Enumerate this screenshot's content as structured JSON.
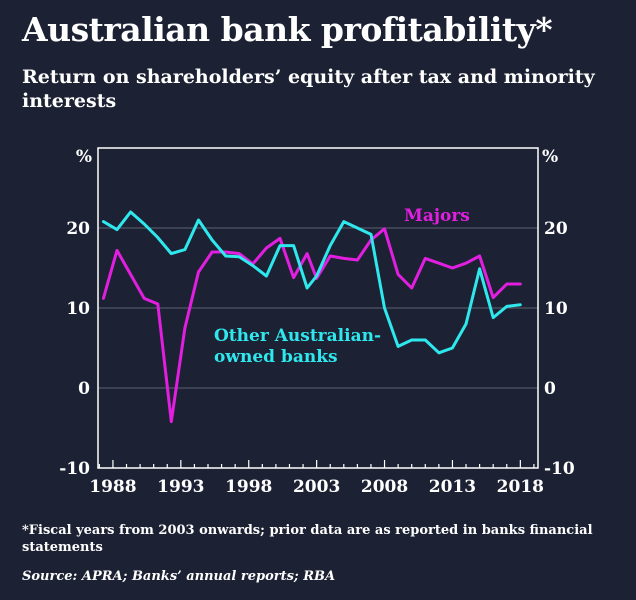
{
  "title": "Australian bank profitability*",
  "subtitle": "Return on shareholders’ equity after tax and minority interests",
  "footnote": "*Fiscal years from 2003 onwards; prior data are as reported in banks financial statements",
  "source": "Source: APRA; Banks’ annual reports; RBA",
  "colors": {
    "background": "#1c2233",
    "majors": "#e21fe0",
    "other": "#2ee8ee",
    "grid": "#5b6170",
    "axis": "#ffffff"
  },
  "chart_data": {
    "type": "line",
    "unit_left": "%",
    "unit_right": "%",
    "xlim": [
      1986.9,
      2019.3
    ],
    "ylim": [
      -10,
      30
    ],
    "y_ticks": [
      -10,
      0,
      10,
      20
    ],
    "x_ticks": [
      1988,
      1993,
      1998,
      2003,
      2008,
      2013,
      2018
    ],
    "x_tick_labels": [
      "1988",
      "1993",
      "1998",
      "2003",
      "2008",
      "2013",
      "2018"
    ],
    "series": [
      {
        "name": "Majors",
        "label": "Majors",
        "points": [
          [
            1987.3,
            11.2
          ],
          [
            1988.3,
            17.2
          ],
          [
            1989.3,
            14.2
          ],
          [
            1990.3,
            11.2
          ],
          [
            1991.3,
            10.5
          ],
          [
            1992.3,
            -4.2
          ],
          [
            1993.3,
            7.5
          ],
          [
            1994.3,
            14.5
          ],
          [
            1995.3,
            17.0
          ],
          [
            1996.3,
            17.0
          ],
          [
            1997.3,
            16.8
          ],
          [
            1998.3,
            15.5
          ],
          [
            1999.3,
            17.5
          ],
          [
            2000.3,
            18.7
          ],
          [
            2001.3,
            13.8
          ],
          [
            2002.3,
            16.8
          ],
          [
            2003.0,
            13.7
          ],
          [
            2004.0,
            16.5
          ],
          [
            2005.0,
            16.2
          ],
          [
            2006.0,
            16.0
          ],
          [
            2007.0,
            18.5
          ],
          [
            2008.0,
            19.9
          ],
          [
            2009.0,
            14.2
          ],
          [
            2010.0,
            12.5
          ],
          [
            2011.0,
            16.2
          ],
          [
            2012.0,
            15.6
          ],
          [
            2013.0,
            15.0
          ],
          [
            2014.0,
            15.6
          ],
          [
            2015.0,
            16.5
          ],
          [
            2016.0,
            11.3
          ],
          [
            2017.0,
            13.0
          ],
          [
            2018.0,
            13.0
          ]
        ]
      },
      {
        "name": "Other Australian-owned banks",
        "label_lines": [
          "Other Australian-",
          "owned banks"
        ],
        "points": [
          [
            1987.3,
            20.8
          ],
          [
            1988.3,
            19.8
          ],
          [
            1989.3,
            22.0
          ],
          [
            1990.3,
            20.5
          ],
          [
            1991.3,
            18.8
          ],
          [
            1992.3,
            16.8
          ],
          [
            1993.3,
            17.3
          ],
          [
            1994.3,
            21.0
          ],
          [
            1995.3,
            18.5
          ],
          [
            1996.3,
            16.5
          ],
          [
            1997.3,
            16.4
          ],
          [
            1998.3,
            15.3
          ],
          [
            1999.3,
            14.0
          ],
          [
            2000.3,
            17.8
          ],
          [
            2001.3,
            17.8
          ],
          [
            2002.3,
            12.5
          ],
          [
            2003.0,
            14.0
          ],
          [
            2004.0,
            17.8
          ],
          [
            2005.0,
            20.8
          ],
          [
            2006.0,
            20.0
          ],
          [
            2007.0,
            19.2
          ],
          [
            2008.0,
            10.0
          ],
          [
            2009.0,
            5.2
          ],
          [
            2010.0,
            6.0
          ],
          [
            2011.0,
            6.0
          ],
          [
            2012.0,
            4.4
          ],
          [
            2013.0,
            5.0
          ],
          [
            2014.0,
            8.0
          ],
          [
            2015.0,
            14.9
          ],
          [
            2016.0,
            8.8
          ],
          [
            2017.0,
            10.2
          ],
          [
            2018.0,
            10.4
          ]
        ]
      }
    ]
  }
}
